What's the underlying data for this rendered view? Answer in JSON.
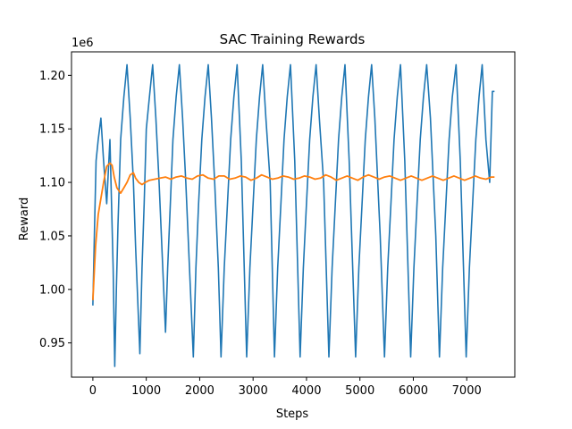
{
  "chart_data": {
    "type": "line",
    "title": "SAC Training Rewards",
    "xlabel": "Steps",
    "ylabel": "Reward",
    "y_offset_label": "1e6",
    "xlim": [
      -400,
      7900
    ],
    "ylim": [
      0.918,
      1.222
    ],
    "x_ticks": [
      0,
      1000,
      2000,
      3000,
      4000,
      5000,
      6000,
      7000
    ],
    "x_tick_labels": [
      "0",
      "1000",
      "2000",
      "3000",
      "4000",
      "5000",
      "6000",
      "7000"
    ],
    "y_ticks": [
      0.95,
      1.0,
      1.05,
      1.1,
      1.15,
      1.2
    ],
    "y_tick_labels": [
      "0.95",
      "1.00",
      "1.05",
      "1.10",
      "1.15",
      "1.20"
    ],
    "grid": false,
    "series": [
      {
        "color": "#1f77b4",
        "description": "raw episode reward, strongly oscillating with period ~533 steps",
        "x": [
          0,
          30,
          60,
          100,
          150,
          200,
          260,
          320,
          380,
          410,
          440,
          470,
          520,
          580,
          640,
          700,
          760,
          800,
          880,
          920,
          960,
          1000,
          1060,
          1120,
          1180,
          1240,
          1300,
          1360,
          1400,
          1450,
          1500,
          1560,
          1620,
          1680,
          1740,
          1800,
          1880,
          1930,
          1980,
          2040,
          2100,
          2160,
          2220,
          2280,
          2350,
          2400,
          2460,
          2520,
          2580,
          2640,
          2700,
          2780,
          2880,
          2940,
          3000,
          3060,
          3120,
          3180,
          3240,
          3320,
          3400,
          3460,
          3520,
          3580,
          3640,
          3700,
          3780,
          3880,
          3940,
          4000,
          4060,
          4120,
          4180,
          4240,
          4320,
          4420,
          4480,
          4540,
          4600,
          4660,
          4720,
          4800,
          4920,
          4980,
          5040,
          5100,
          5160,
          5220,
          5280,
          5380,
          5460,
          5520,
          5580,
          5640,
          5700,
          5760,
          5840,
          5950,
          6010,
          6070,
          6130,
          6190,
          6250,
          6320,
          6420,
          6490,
          6550,
          6610,
          6670,
          6730,
          6800,
          6880,
          6990,
          7050,
          7110,
          7170,
          7230,
          7290,
          7360,
          7430,
          7480,
          7520
        ],
        "y": [
          0.985,
          1.055,
          1.12,
          1.14,
          1.16,
          1.12,
          1.08,
          1.14,
          1.02,
          0.928,
          1.0,
          1.06,
          1.14,
          1.18,
          1.21,
          1.16,
          1.1,
          1.04,
          0.94,
          1.02,
          1.08,
          1.15,
          1.18,
          1.21,
          1.16,
          1.1,
          1.03,
          0.96,
          1.02,
          1.08,
          1.14,
          1.18,
          1.21,
          1.16,
          1.1,
          1.03,
          0.937,
          1.02,
          1.08,
          1.14,
          1.18,
          1.21,
          1.16,
          1.1,
          1.02,
          0.937,
          1.02,
          1.08,
          1.14,
          1.18,
          1.21,
          1.12,
          0.937,
          1.02,
          1.08,
          1.14,
          1.18,
          1.21,
          1.16,
          1.1,
          0.937,
          1.02,
          1.08,
          1.14,
          1.18,
          1.21,
          1.12,
          0.937,
          1.02,
          1.08,
          1.14,
          1.18,
          1.21,
          1.16,
          1.1,
          0.937,
          1.02,
          1.08,
          1.14,
          1.18,
          1.21,
          1.12,
          0.937,
          1.02,
          1.08,
          1.14,
          1.18,
          1.21,
          1.16,
          1.05,
          0.937,
          1.02,
          1.08,
          1.14,
          1.18,
          1.21,
          1.12,
          0.937,
          1.02,
          1.08,
          1.14,
          1.18,
          1.21,
          1.16,
          1.05,
          0.937,
          1.02,
          1.08,
          1.14,
          1.18,
          1.21,
          1.12,
          0.937,
          1.02,
          1.08,
          1.14,
          1.18,
          1.21,
          1.14,
          1.1,
          1.185,
          1.185
        ]
      },
      {
        "color": "#ff7f0e",
        "description": "smoothed moving average",
        "x": [
          0,
          50,
          100,
          150,
          200,
          260,
          320,
          360,
          400,
          450,
          520,
          580,
          640,
          700,
          760,
          800,
          860,
          920,
          980,
          1060,
          1160,
          1260,
          1360,
          1460,
          1560,
          1660,
          1760,
          1860,
          1960,
          2060,
          2160,
          2260,
          2360,
          2460,
          2560,
          2660,
          2760,
          2860,
          2960,
          3060,
          3160,
          3260,
          3360,
          3460,
          3560,
          3660,
          3760,
          3860,
          3960,
          4060,
          4160,
          4260,
          4360,
          4460,
          4560,
          4660,
          4760,
          4860,
          4960,
          5060,
          5160,
          5260,
          5360,
          5460,
          5560,
          5660,
          5760,
          5860,
          5960,
          6060,
          6160,
          6260,
          6360,
          6460,
          6560,
          6660,
          6760,
          6860,
          6960,
          7060,
          7160,
          7260,
          7360,
          7460,
          7520
        ],
        "y": [
          0.99,
          1.04,
          1.07,
          1.085,
          1.1,
          1.115,
          1.118,
          1.116,
          1.105,
          1.095,
          1.09,
          1.095,
          1.1,
          1.107,
          1.109,
          1.104,
          1.1,
          1.098,
          1.1,
          1.102,
          1.103,
          1.104,
          1.105,
          1.103,
          1.105,
          1.106,
          1.104,
          1.103,
          1.106,
          1.107,
          1.104,
          1.103,
          1.106,
          1.106,
          1.103,
          1.104,
          1.106,
          1.105,
          1.102,
          1.104,
          1.107,
          1.105,
          1.103,
          1.104,
          1.106,
          1.105,
          1.103,
          1.104,
          1.106,
          1.105,
          1.103,
          1.104,
          1.107,
          1.105,
          1.102,
          1.104,
          1.106,
          1.104,
          1.102,
          1.105,
          1.107,
          1.105,
          1.103,
          1.105,
          1.106,
          1.104,
          1.102,
          1.104,
          1.106,
          1.104,
          1.102,
          1.104,
          1.106,
          1.104,
          1.102,
          1.104,
          1.106,
          1.104,
          1.102,
          1.104,
          1.106,
          1.104,
          1.103,
          1.105,
          1.105
        ]
      }
    ]
  }
}
